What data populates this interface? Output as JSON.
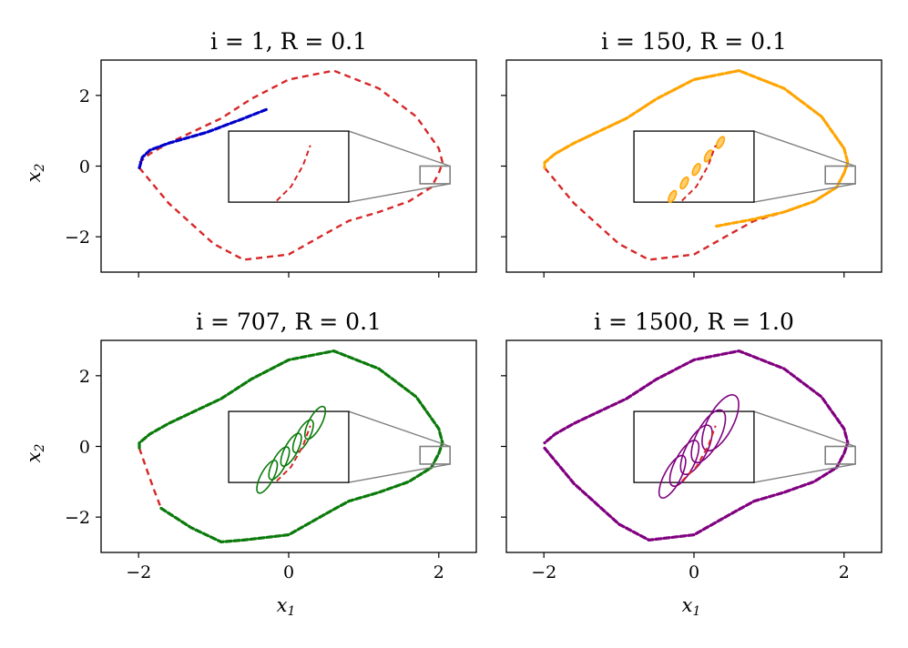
{
  "figure": {
    "xlabel": "x",
    "xlabel_sub": "1",
    "ylabel": "x",
    "ylabel_sub": "2"
  },
  "chart_data": [
    {
      "type": "line",
      "title": "i = 1, R = 0.1",
      "uncertainty_color": "#0000cc",
      "reference_color": "#d62728",
      "xlim": [
        -2.5,
        2.5
      ],
      "ylim": [
        -3,
        3
      ],
      "xticks": [
        "−2",
        "0",
        "2"
      ],
      "yticks": [
        "−2",
        "0",
        "2"
      ],
      "show_xtick_labels": false,
      "show_ytick_labels": true,
      "series": [
        {
          "name": "",
          "style": "dashed-red",
          "x": [
            -1.99,
            -1.6,
            -1.0,
            -0.6,
            0.0,
            0.5,
            0.8,
            1.2,
            1.6,
            1.9,
            2.0,
            2.05,
            2.0,
            1.7,
            1.2,
            0.6,
            0.0,
            -0.5,
            -0.9,
            -1.3,
            -1.6,
            -1.85,
            -1.99
          ],
          "y": [
            -0.05,
            -1.05,
            -2.2,
            -2.65,
            -2.5,
            -1.9,
            -1.55,
            -1.3,
            -1.0,
            -0.6,
            -0.2,
            0.1,
            0.5,
            1.4,
            2.2,
            2.7,
            2.45,
            1.9,
            1.35,
            0.95,
            0.65,
            0.35,
            0.1
          ]
        },
        {
          "name": "",
          "style": "propagated",
          "x": [
            -1.99,
            -1.95,
            -1.85,
            -1.6,
            -1.1,
            -0.6,
            -0.3
          ],
          "y": [
            -0.05,
            0.25,
            0.45,
            0.65,
            0.95,
            1.35,
            1.6
          ]
        }
      ],
      "inset": {
        "zoom_xlim": [
          1.75,
          2.15
        ],
        "zoom_ylim": [
          -0.5,
          0.0
        ]
      }
    },
    {
      "type": "line",
      "title": "i = 150, R = 0.1",
      "uncertainty_color": "#ffa500",
      "reference_color": "#d62728",
      "xlim": [
        -2.5,
        2.5
      ],
      "ylim": [
        -3,
        3
      ],
      "xticks": [
        "−2",
        "0",
        "2"
      ],
      "yticks": [
        "−2",
        "0",
        "2"
      ],
      "show_xtick_labels": false,
      "show_ytick_labels": false,
      "series": [
        {
          "name": "",
          "style": "dashed-red",
          "x": [
            -1.99,
            -1.6,
            -1.0,
            -0.6,
            0.0,
            0.5,
            0.8,
            1.2,
            1.6,
            1.9,
            2.0,
            2.05,
            2.0,
            1.7,
            1.2,
            0.6,
            0.0,
            -0.5,
            -0.9,
            -1.3,
            -1.6,
            -1.85,
            -1.99
          ],
          "y": [
            -0.05,
            -1.05,
            -2.2,
            -2.65,
            -2.5,
            -1.9,
            -1.55,
            -1.3,
            -1.0,
            -0.6,
            -0.2,
            0.1,
            0.5,
            1.4,
            2.2,
            2.7,
            2.45,
            1.9,
            1.35,
            0.95,
            0.65,
            0.35,
            0.1
          ]
        },
        {
          "name": "",
          "style": "propagated",
          "x": [
            0.3,
            0.8,
            1.2,
            1.6,
            1.9,
            2.0,
            2.05,
            2.0,
            1.7,
            1.2,
            0.6,
            0.0,
            -0.5,
            -0.9,
            -1.3,
            -1.6,
            -1.85,
            -1.99,
            -1.99
          ],
          "y": [
            -1.7,
            -1.5,
            -1.3,
            -1.0,
            -0.6,
            -0.2,
            0.1,
            0.5,
            1.4,
            2.2,
            2.7,
            2.45,
            1.9,
            1.35,
            0.95,
            0.65,
            0.35,
            0.1,
            -0.05
          ]
        }
      ],
      "inset": {
        "zoom_xlim": [
          1.75,
          2.15
        ],
        "zoom_ylim": [
          -0.5,
          0.0
        ]
      }
    },
    {
      "type": "line",
      "title": "i = 707, R = 0.1",
      "uncertainty_color": "#0a7a0a",
      "reference_color": "#d62728",
      "xlim": [
        -2.5,
        2.5
      ],
      "ylim": [
        -3,
        3
      ],
      "xticks": [
        "−2",
        "0",
        "2"
      ],
      "yticks": [
        "−2",
        "0",
        "2"
      ],
      "show_xtick_labels": true,
      "show_ytick_labels": true,
      "series": [
        {
          "name": "",
          "style": "dashed-red",
          "x": [
            -1.99,
            -1.9,
            -1.8,
            -1.7
          ],
          "y": [
            -0.05,
            -0.6,
            -1.2,
            -1.75
          ]
        },
        {
          "name": "",
          "style": "propagated",
          "x": [
            -1.7,
            -1.3,
            -0.9,
            -0.6,
            0.0,
            0.5,
            0.8,
            1.2,
            1.6,
            1.9,
            2.0,
            2.05,
            2.0,
            1.7,
            1.2,
            0.6,
            0.0,
            -0.5,
            -0.9,
            -1.3,
            -1.6,
            -1.85,
            -1.99,
            -1.99
          ],
          "y": [
            -1.75,
            -2.3,
            -2.7,
            -2.65,
            -2.5,
            -1.9,
            -1.55,
            -1.3,
            -1.0,
            -0.6,
            -0.2,
            0.1,
            0.5,
            1.4,
            2.2,
            2.7,
            2.45,
            1.9,
            1.35,
            0.95,
            0.65,
            0.35,
            0.1,
            -0.05
          ]
        }
      ],
      "inset": {
        "zoom_xlim": [
          1.75,
          2.15
        ],
        "zoom_ylim": [
          -0.5,
          0.0
        ]
      }
    },
    {
      "type": "line",
      "title": "i = 1500, R = 1.0",
      "uncertainty_color": "#800080",
      "reference_color": "#d62728",
      "xlim": [
        -2.5,
        2.5
      ],
      "ylim": [
        -3,
        3
      ],
      "xticks": [
        "−2",
        "0",
        "2"
      ],
      "yticks": [
        "−2",
        "0",
        "2"
      ],
      "show_xtick_labels": true,
      "show_ytick_labels": false,
      "series": [
        {
          "name": "",
          "style": "propagated",
          "x": [
            -1.99,
            -1.6,
            -1.0,
            -0.6,
            0.0,
            0.5,
            0.8,
            1.2,
            1.6,
            1.9,
            2.0,
            2.05,
            2.0,
            1.7,
            1.2,
            0.6,
            0.0,
            -0.5,
            -0.9,
            -1.3,
            -1.6,
            -1.85,
            -1.99
          ],
          "y": [
            -0.05,
            -1.05,
            -2.2,
            -2.65,
            -2.5,
            -1.9,
            -1.55,
            -1.3,
            -1.0,
            -0.6,
            -0.2,
            0.1,
            0.5,
            1.4,
            2.2,
            2.7,
            2.45,
            1.9,
            1.35,
            0.95,
            0.65,
            0.35,
            0.1
          ]
        }
      ],
      "inset": {
        "zoom_xlim": [
          1.75,
          2.15
        ],
        "zoom_ylim": [
          -0.5,
          0.0
        ]
      }
    }
  ]
}
